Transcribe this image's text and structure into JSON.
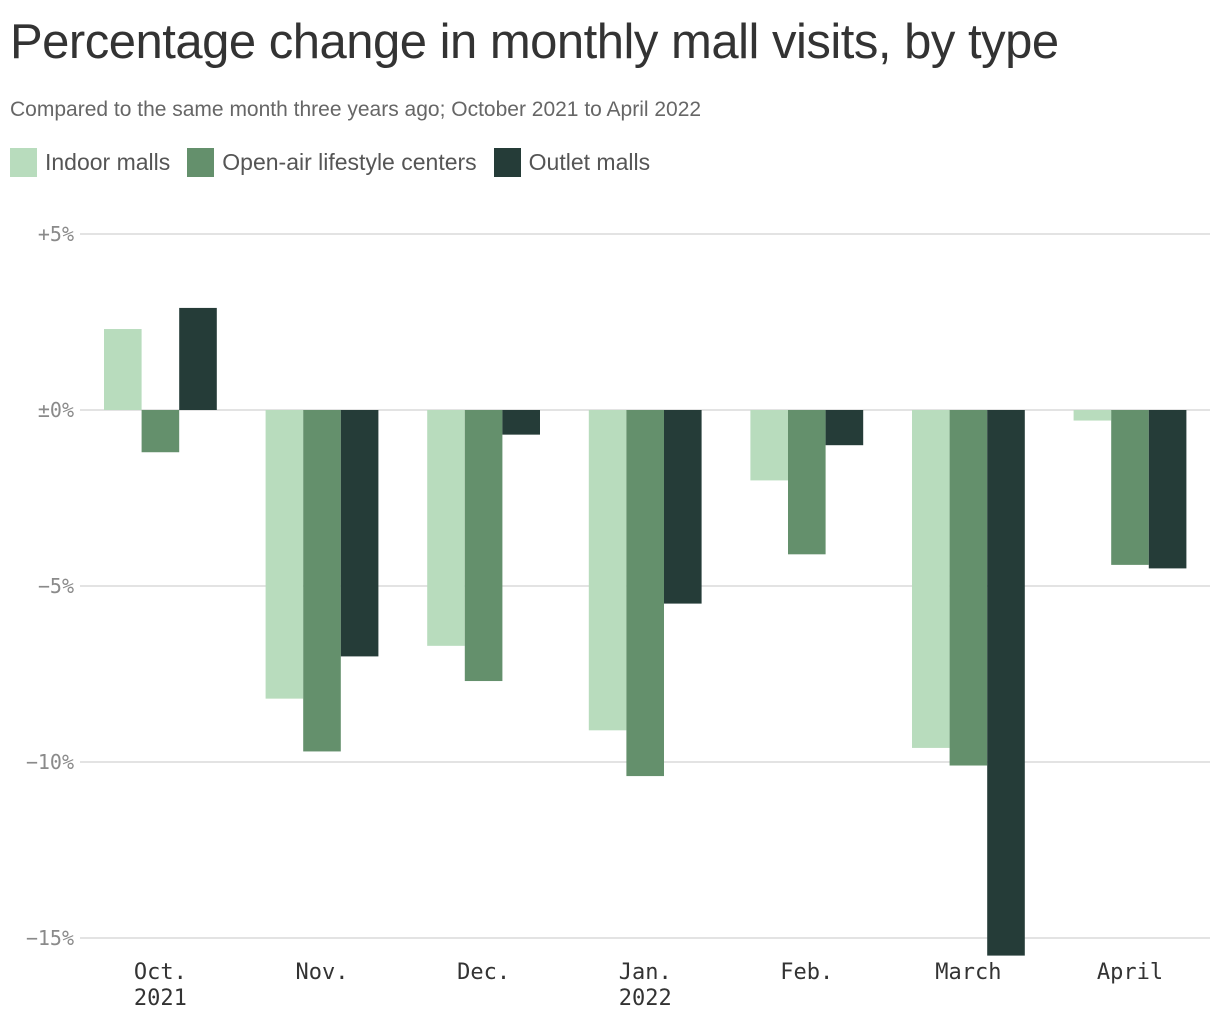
{
  "chart_data": {
    "type": "bar",
    "title": "Percentage change in monthly mall visits, by type",
    "subtitle": "Compared to the same month three years ago; October 2021 to April 2022",
    "categories": [
      {
        "label": "Oct.",
        "sublabel": "2021"
      },
      {
        "label": "Nov.",
        "sublabel": ""
      },
      {
        "label": "Dec.",
        "sublabel": ""
      },
      {
        "label": "Jan.",
        "sublabel": "2022"
      },
      {
        "label": "Feb.",
        "sublabel": ""
      },
      {
        "label": "March",
        "sublabel": ""
      },
      {
        "label": "April",
        "sublabel": ""
      }
    ],
    "series": [
      {
        "name": "Indoor malls",
        "color": "#b8dcbd",
        "values": [
          2.3,
          -8.2,
          -6.7,
          -9.1,
          -2.0,
          -9.6,
          -0.3
        ]
      },
      {
        "name": "Open-air lifestyle centers",
        "color": "#64906c",
        "values": [
          -1.2,
          -9.7,
          -7.7,
          -10.4,
          -4.1,
          -10.1,
          -4.4
        ]
      },
      {
        "name": "Outlet malls",
        "color": "#253c38",
        "values": [
          2.9,
          -7.0,
          -0.7,
          -5.5,
          -1.0,
          -15.5,
          -4.5
        ]
      }
    ],
    "ylim": [
      -15.5,
      5
    ],
    "yticks": [
      {
        "value": 5,
        "label": "+5%"
      },
      {
        "value": 0,
        "label": "±0%"
      },
      {
        "value": -5,
        "label": "−5%"
      },
      {
        "value": -10,
        "label": "−10%"
      },
      {
        "value": -15,
        "label": "−15%"
      }
    ],
    "grid": true,
    "legend_position": "top-left"
  }
}
